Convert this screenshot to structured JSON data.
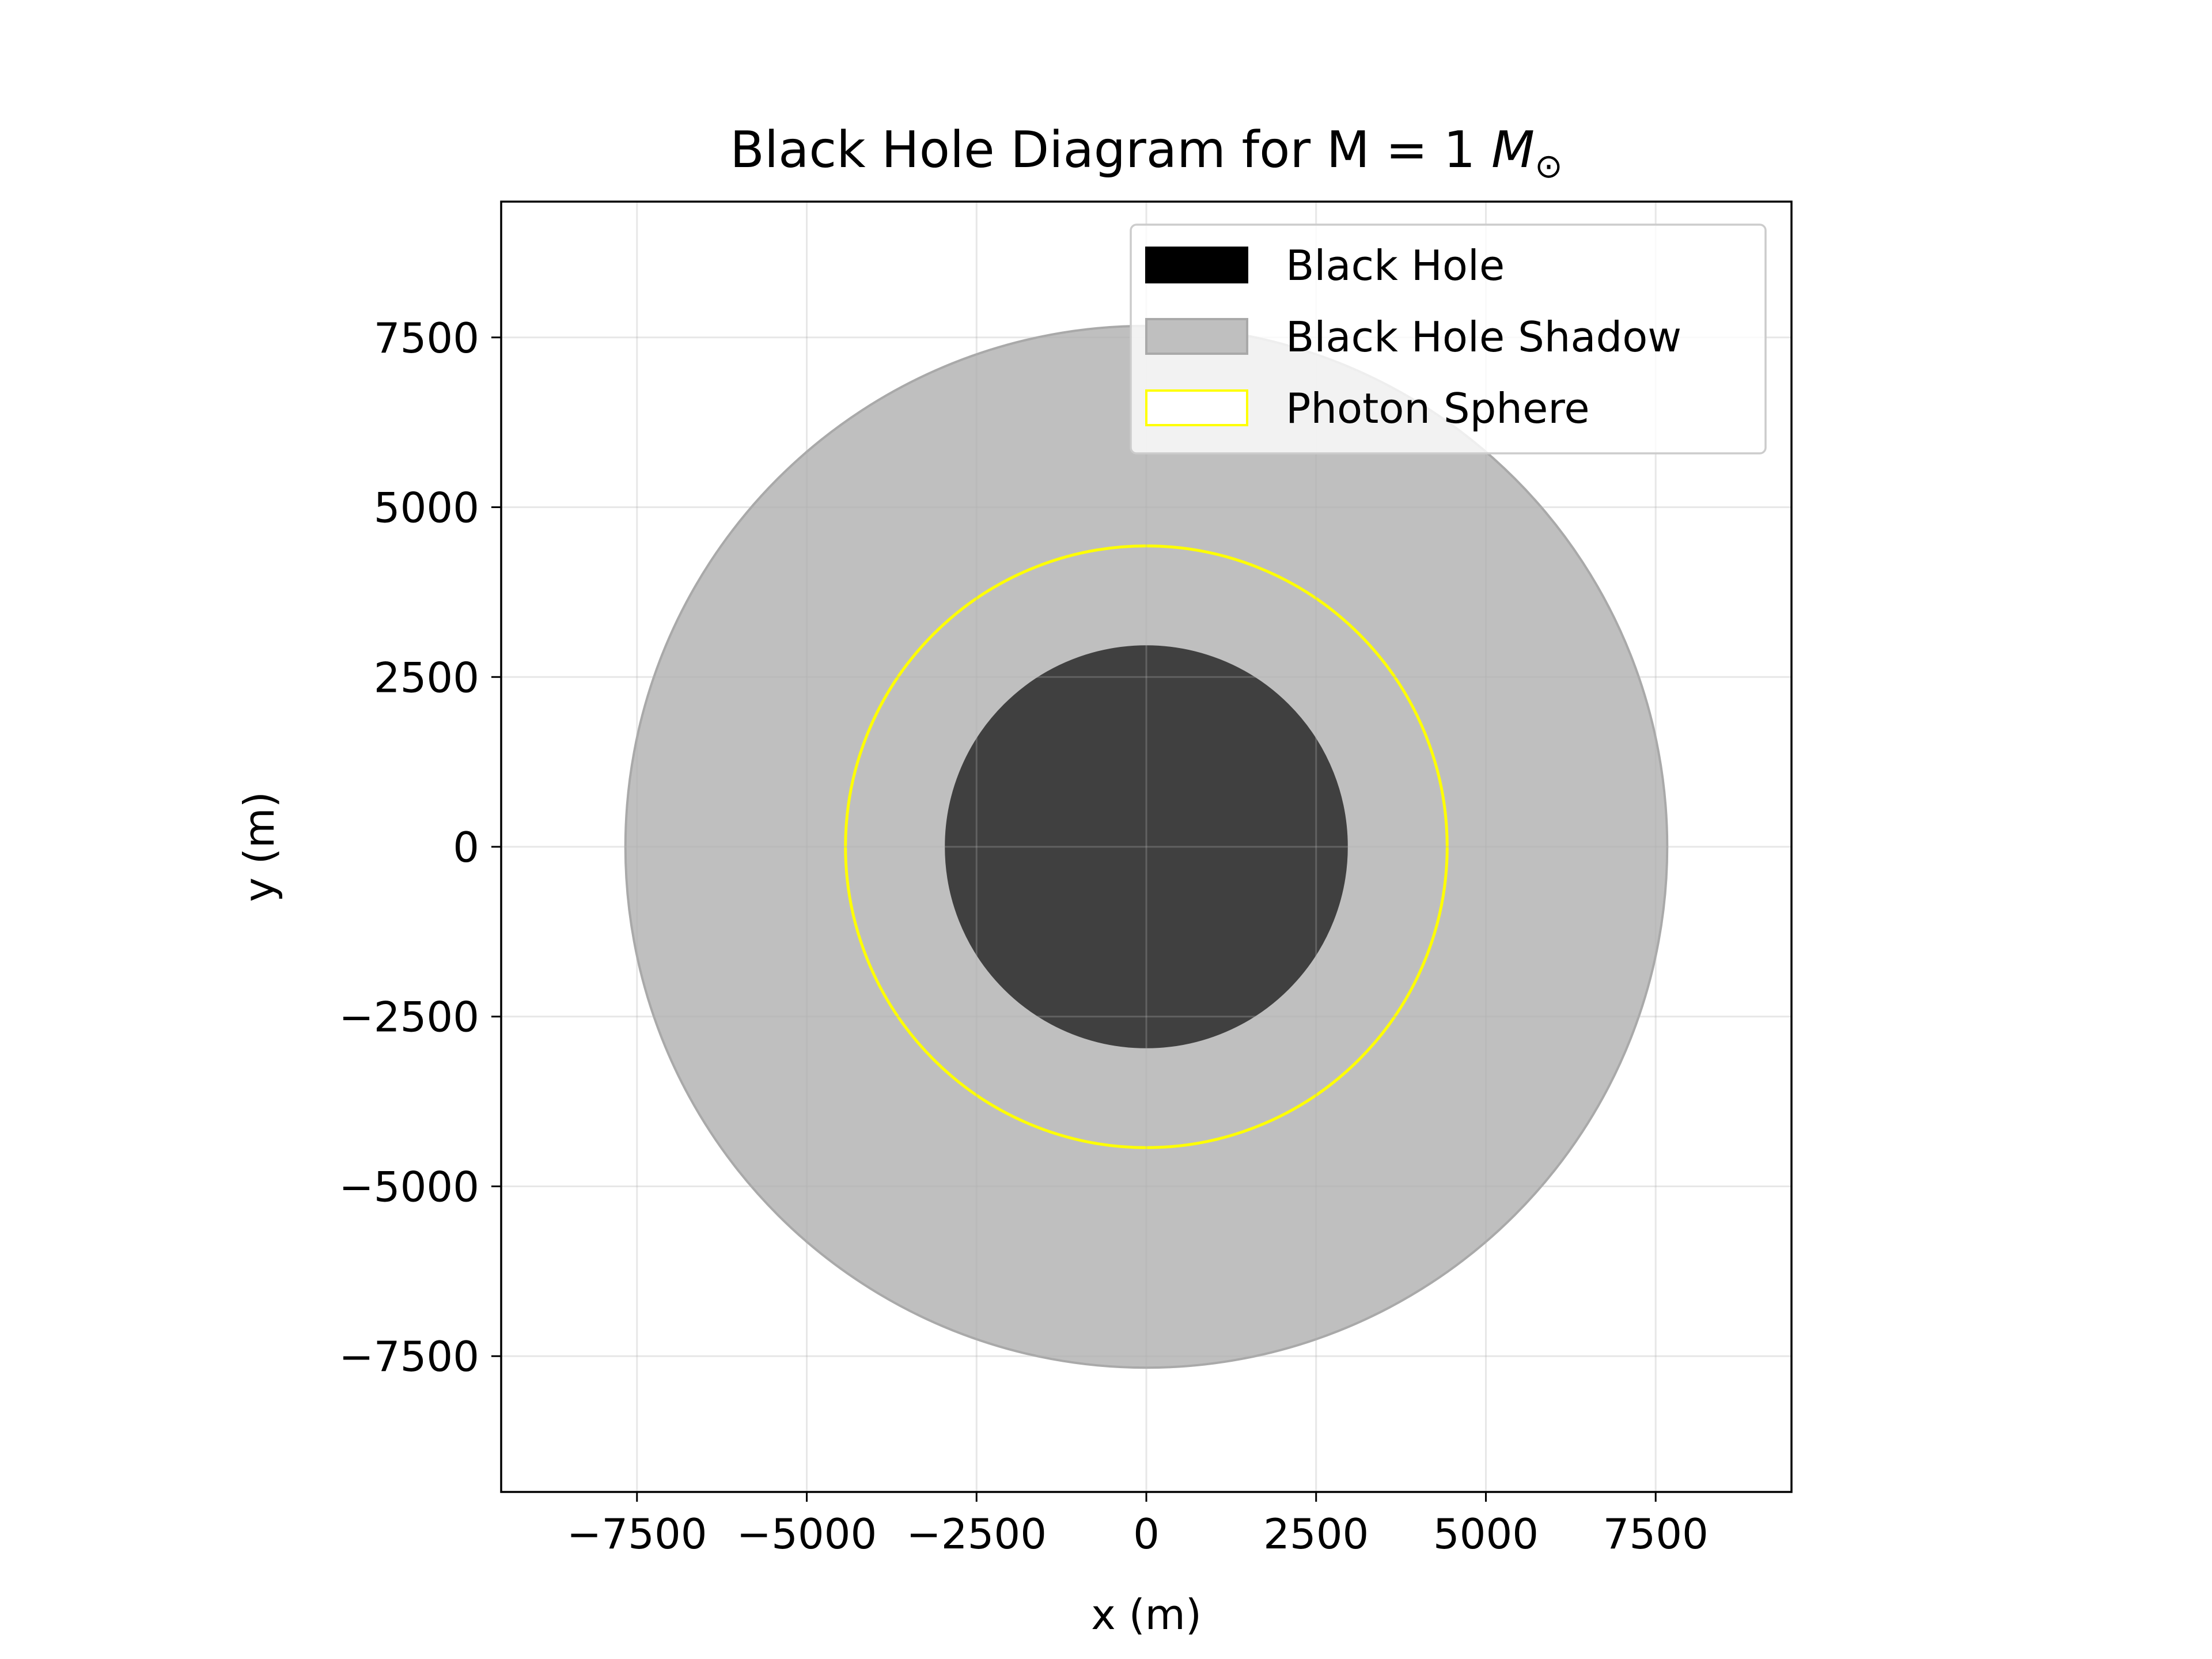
{
  "chart_data": {
    "type": "diagram",
    "title": {
      "main": "Black Hole Diagram for M = 1 ",
      "mass_symbol": "M",
      "sun_symbol": "⊙"
    },
    "xlabel": "x (m)",
    "ylabel": "y (m)",
    "xlim": [
      -9500,
      9500
    ],
    "ylim": [
      -9500,
      9500
    ],
    "ticks": [
      -7500,
      -5000,
      -2500,
      0,
      2500,
      5000,
      7500
    ],
    "tick_labels": [
      "−7500",
      "−5000",
      "−2500",
      "0",
      "2500",
      "5000",
      "7500"
    ],
    "grid": true,
    "legend_position": "top-right",
    "circles": [
      {
        "key": "shadow",
        "name": "Black Hole Shadow",
        "radius": 7670,
        "fill": "#bfbfbf",
        "edge": "#a9a9a9"
      },
      {
        "key": "black_hole",
        "name": "Black Hole",
        "radius": 2950,
        "fill": "#404040",
        "edge": "#404040"
      },
      {
        "key": "photon_sphere",
        "name": "Photon Sphere",
        "radius": 4430,
        "fill": "none",
        "edge": "#ffff00"
      }
    ],
    "legend": [
      {
        "label": "Black Hole",
        "swatch_fill": "#000000",
        "swatch_edge": "#000000"
      },
      {
        "label": "Black Hole Shadow",
        "swatch_fill": "#bfbfbf",
        "swatch_edge": "#a9a9a9"
      },
      {
        "label": "Photon Sphere",
        "swatch_fill": "#ffffff",
        "swatch_edge": "#ffff00"
      }
    ]
  }
}
